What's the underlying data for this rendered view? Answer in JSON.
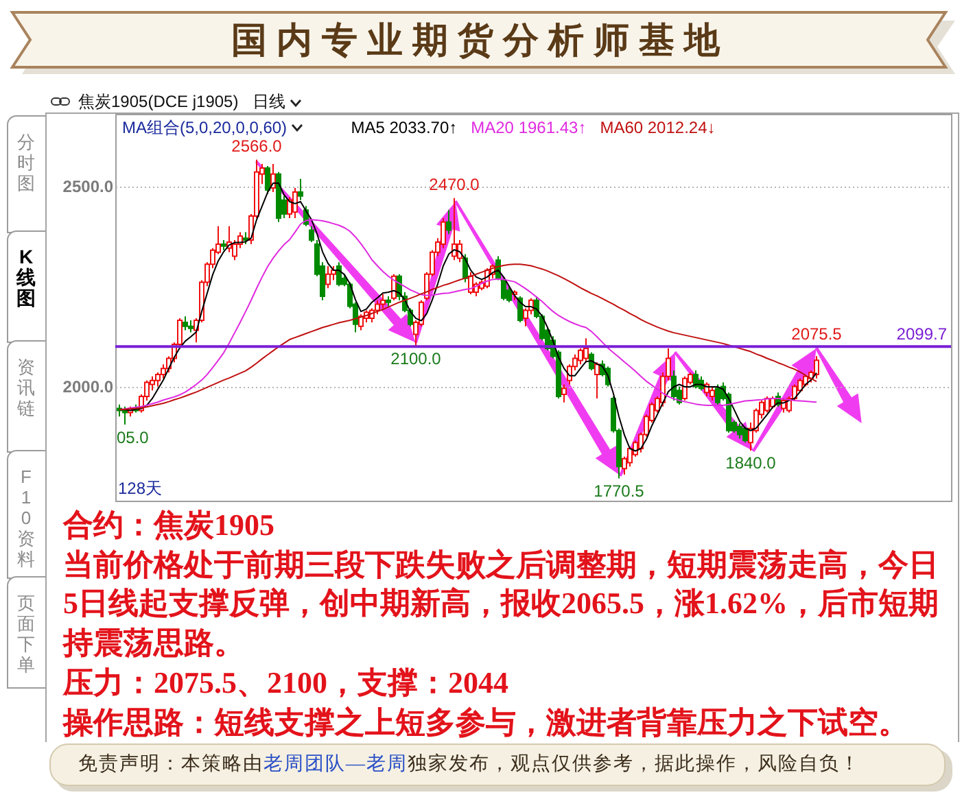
{
  "chart_data": {
    "type": "candlestick",
    "title": "国内专业期货分析师基地",
    "categories": [
      null,
      null,
      null,
      null,
      null,
      null,
      null,
      null,
      null,
      null,
      null,
      null,
      null,
      null,
      null,
      null,
      null,
      null,
      null,
      null,
      null,
      null,
      null,
      null,
      null,
      null,
      null,
      null,
      null,
      null,
      null,
      null,
      null,
      null,
      null,
      null,
      null,
      null,
      null,
      null,
      null,
      null,
      null,
      null,
      null,
      null,
      null,
      null,
      null,
      null,
      null,
      null,
      null,
      null,
      null,
      null,
      null,
      null,
      null,
      null,
      null,
      null,
      null,
      null,
      null,
      null,
      null,
      null,
      null,
      null,
      null,
      null,
      null,
      null,
      null,
      null,
      null,
      null,
      null,
      null,
      null,
      null,
      null,
      null,
      null,
      null,
      null,
      null,
      null,
      null,
      null,
      null,
      null,
      null,
      null,
      null,
      null,
      null,
      null,
      null,
      null,
      null,
      null,
      null,
      null,
      null,
      null,
      null,
      null,
      null,
      null,
      null,
      null,
      null,
      null,
      null,
      null,
      null,
      null,
      null,
      null,
      null,
      null,
      null,
      null,
      null,
      null,
      null
    ],
    "ohlc": [
      [
        1945,
        1955,
        1925,
        1940
      ],
      [
        1940,
        1950,
        1905,
        1935
      ],
      [
        1935,
        1950,
        1925,
        1945
      ],
      [
        1945,
        1955,
        1935,
        1940
      ],
      [
        1940,
        1980,
        1935,
        1975
      ],
      [
        1975,
        2015,
        1965,
        2010
      ],
      [
        2005,
        2025,
        1990,
        2015
      ],
      [
        2015,
        2035,
        2000,
        2030
      ],
      [
        2030,
        2055,
        2020,
        2045
      ],
      [
        2045,
        2075,
        2035,
        2070
      ],
      [
        2070,
        2110,
        2060,
        2105
      ],
      [
        2105,
        2170,
        2095,
        2165
      ],
      [
        2160,
        2175,
        2140,
        2150
      ],
      [
        2150,
        2165,
        2135,
        2145
      ],
      [
        2140,
        2170,
        2110,
        2165
      ],
      [
        2165,
        2265,
        2160,
        2260
      ],
      [
        2260,
        2310,
        2250,
        2305
      ],
      [
        2305,
        2345,
        2295,
        2340
      ],
      [
        2335,
        2400,
        2330,
        2355
      ],
      [
        2355,
        2365,
        2340,
        2350
      ],
      [
        2345,
        2400,
        2335,
        2360
      ],
      [
        2325,
        2365,
        2315,
        2355
      ],
      [
        2355,
        2385,
        2345,
        2375
      ],
      [
        2370,
        2385,
        2355,
        2365
      ],
      [
        2365,
        2430,
        2355,
        2425
      ],
      [
        2425,
        2566,
        2420,
        2535
      ],
      [
        2530,
        2555,
        2505,
        2545
      ],
      [
        2545,
        2550,
        2480,
        2490
      ],
      [
        2495,
        2555,
        2485,
        2530
      ],
      [
        2530,
        2535,
        2410,
        2420
      ],
      [
        2465,
        2475,
        2420,
        2430
      ],
      [
        2430,
        2472,
        2420,
        2465
      ],
      [
        2435,
        2495,
        2420,
        2485
      ],
      [
        2485,
        2518,
        2465,
        2475
      ],
      [
        2440,
        2450,
        2400,
        2405
      ],
      [
        2390,
        2400,
        2360,
        2365
      ],
      [
        2355,
        2365,
        2275,
        2280
      ],
      [
        2300,
        2310,
        2215,
        2225
      ],
      [
        2255,
        2300,
        2245,
        2280
      ],
      [
        2280,
        2300,
        2265,
        2290
      ],
      [
        2300,
        2310,
        2250,
        2255
      ],
      [
        2270,
        2280,
        2250,
        2255
      ],
      [
        2255,
        2260,
        2195,
        2200
      ],
      [
        2205,
        2210,
        2135,
        2155
      ],
      [
        2150,
        2180,
        2140,
        2175
      ],
      [
        2170,
        2190,
        2160,
        2185
      ],
      [
        2170,
        2195,
        2160,
        2190
      ],
      [
        2190,
        2215,
        2180,
        2205
      ],
      [
        2205,
        2230,
        2195,
        2215
      ],
      [
        2215,
        2225,
        2200,
        2210
      ],
      [
        2220,
        2280,
        2215,
        2275
      ],
      [
        2275,
        2280,
        2215,
        2225
      ],
      [
        2225,
        2235,
        2185,
        2190
      ],
      [
        2190,
        2195,
        2150,
        2155
      ],
      [
        2130,
        2165,
        2100,
        2160
      ],
      [
        2155,
        2215,
        2150,
        2210
      ],
      [
        2220,
        2285,
        2215,
        2280
      ],
      [
        2280,
        2340,
        2275,
        2335
      ],
      [
        2335,
        2370,
        2325,
        2360
      ],
      [
        2355,
        2420,
        2345,
        2410
      ],
      [
        2410,
        2440,
        2380,
        2390
      ],
      [
        2325,
        2470,
        2315,
        2355
      ],
      [
        2320,
        2365,
        2310,
        2355
      ],
      [
        2320,
        2330,
        2260,
        2270
      ],
      [
        2235,
        2285,
        2230,
        2275
      ],
      [
        2235,
        2260,
        2225,
        2255
      ],
      [
        2245,
        2265,
        2240,
        2260
      ],
      [
        2250,
        2295,
        2245,
        2290
      ],
      [
        2280,
        2305,
        2270,
        2300
      ],
      [
        2315,
        2325,
        2265,
        2270
      ],
      [
        2265,
        2270,
        2215,
        2220
      ],
      [
        2240,
        2250,
        2210,
        2215
      ],
      [
        2230,
        2240,
        2215,
        2235
      ],
      [
        2220,
        2225,
        2160,
        2165
      ],
      [
        2170,
        2195,
        2150,
        2190
      ],
      [
        2190,
        2220,
        2180,
        2215
      ],
      [
        2215,
        2225,
        2170,
        2175
      ],
      [
        2175,
        2180,
        2115,
        2120
      ],
      [
        2140,
        2145,
        2090,
        2095
      ],
      [
        2115,
        2125,
        2070,
        2075
      ],
      [
        2085,
        2090,
        1970,
        1975
      ],
      [
        1980,
        2005,
        1960,
        1995
      ],
      [
        2015,
        2055,
        2005,
        2050
      ],
      [
        2050,
        2080,
        2040,
        2070
      ],
      [
        2065,
        2095,
        2055,
        2090
      ],
      [
        2070,
        2120,
        2060,
        2095
      ],
      [
        2080,
        2085,
        2040,
        2045
      ],
      [
        2030,
        2060,
        1970,
        2055
      ],
      [
        2055,
        2065,
        2025,
        2030
      ],
      [
        2045,
        2050,
        2000,
        2005
      ],
      [
        1970,
        1975,
        1885,
        1890
      ],
      [
        1890,
        1895,
        1770.5,
        1800
      ],
      [
        1795,
        1825,
        1780,
        1820
      ],
      [
        1810,
        1850,
        1800,
        1845
      ],
      [
        1830,
        1865,
        1825,
        1860
      ],
      [
        1845,
        1885,
        1835,
        1880
      ],
      [
        1880,
        1930,
        1875,
        1925
      ],
      [
        1915,
        1960,
        1910,
        1955
      ],
      [
        1940,
        1975,
        1935,
        1970
      ],
      [
        1960,
        2035,
        1950,
        2025
      ],
      [
        2025,
        2095,
        2015,
        2070
      ],
      [
        2025,
        2040,
        1965,
        1975
      ],
      [
        1990,
        2000,
        1955,
        1960
      ],
      [
        1970,
        2025,
        1965,
        2020
      ],
      [
        2010,
        2035,
        2005,
        2030
      ],
      [
        2030,
        2040,
        1995,
        2000
      ],
      [
        2015,
        2025,
        1990,
        1995
      ],
      [
        1985,
        2010,
        1975,
        2005
      ],
      [
        1975,
        2000,
        1965,
        1990
      ],
      [
        1995,
        2005,
        1955,
        1960
      ],
      [
        2000,
        2010,
        1965,
        1970
      ],
      [
        1980,
        1985,
        1885,
        1890
      ],
      [
        1910,
        1915,
        1885,
        1890
      ],
      [
        1900,
        1908,
        1870,
        1880
      ],
      [
        1895,
        1900,
        1860,
        1865
      ],
      [
        1860,
        1910,
        1840,
        1895
      ],
      [
        1890,
        1945,
        1885,
        1940
      ],
      [
        1930,
        1965,
        1920,
        1960
      ],
      [
        1940,
        1975,
        1935,
        1970
      ],
      [
        1950,
        1975,
        1945,
        1970
      ],
      [
        1975,
        1985,
        1950,
        1955
      ],
      [
        1945,
        1970,
        1935,
        1965
      ],
      [
        1940,
        1975,
        1935,
        1970
      ],
      [
        1970,
        2005,
        1965,
        2000
      ],
      [
        1990,
        2020,
        1985,
        2015
      ],
      [
        2005,
        2030,
        2000,
        2025
      ],
      [
        2020,
        2040,
        2010,
        2035
      ],
      [
        2030,
        2075.5,
        2020,
        2065.5
      ]
    ],
    "series": [
      {
        "name": "MA5 2033.70↑",
        "type": "line",
        "color": "#000000",
        "values": [
          1942,
          1942,
          1940,
          1943,
          1945,
          1953,
          1970,
          1993,
          2016,
          2045,
          2073,
          2096,
          2113,
          2124,
          2136,
          2187,
          2233,
          2279,
          2313,
          2336,
          2353,
          2359,
          2359,
          2361,
          2370,
          2416,
          2450,
          2484,
          2507,
          2507,
          2478,
          2461,
          2456,
          2461,
          2438,
          2416,
          2381,
          2336,
          2307,
          2290,
          2290,
          2279,
          2256,
          2216,
          2187,
          2193,
          2210,
          2221,
          2233,
          2235,
          2239,
          2233,
          2216,
          2187,
          2170,
          2164,
          2182,
          2216,
          2256,
          2301,
          2330,
          2341,
          2336,
          2318,
          2290,
          2273,
          2267,
          2273,
          2284,
          2290,
          2273,
          2250,
          2227,
          2210,
          2199,
          2199,
          2193,
          2176,
          2147,
          2113,
          2073,
          2045,
          2027,
          2027,
          2045,
          2062,
          2064,
          2056,
          2050,
          2027,
          1982,
          1925,
          1879,
          1845,
          1839,
          1845,
          1868,
          1902,
          1930,
          1959,
          1987,
          1999,
          2005,
          1999,
          1999,
          2005,
          2005,
          1999,
          1999,
          1999,
          1993,
          1970,
          1942,
          1913,
          1896,
          1890,
          1896,
          1913,
          1930,
          1948,
          1959,
          1959,
          1965,
          1970,
          1987,
          2005,
          2016,
          2034
        ]
      },
      {
        "name": "MA20 1961.43↑",
        "type": "line",
        "color": "#e02ae0",
        "values": [
          1942,
          1944,
          1946,
          1948,
          1950,
          1953,
          1957,
          1961,
          1966,
          1970,
          1974,
          1979,
          1986,
          1995,
          2005,
          2016,
          2030,
          2047,
          2065,
          2084,
          2108,
          2134,
          2160,
          2187,
          2215,
          2245,
          2273,
          2299,
          2320,
          2338,
          2354,
          2366,
          2385,
          2405,
          2414,
          2416,
          2415,
          2413,
          2410,
          2406,
          2402,
          2396,
          2387,
          2373,
          2356,
          2337,
          2316,
          2301,
          2287,
          2275,
          2265,
          2257,
          2249,
          2241,
          2235,
          2229,
          2227,
          2228,
          2230,
          2232,
          2233,
          2236,
          2239,
          2242,
          2244,
          2250,
          2257,
          2263,
          2267,
          2268,
          2267,
          2264,
          2261,
          2253,
          2244,
          2234,
          2223,
          2212,
          2199,
          2187,
          2177,
          2169,
          2162,
          2156,
          2151,
          2147,
          2137,
          2124,
          2110,
          2096,
          2084,
          2073,
          2061,
          2050,
          2038,
          2025,
          2013,
          2003,
          1993,
          1983,
          1975,
          1969,
          1965,
          1962,
          1959,
          1956,
          1954,
          1953,
          1953,
          1953,
          1953,
          1955,
          1958,
          1961,
          1964,
          1965,
          1966,
          1967,
          1969,
          1970,
          1970,
          1969,
          1967,
          1965,
          1964,
          1963,
          1962,
          1961
        ]
      },
      {
        "name": "MA60 2012.24↓",
        "type": "line",
        "color": "#c01010",
        "values": [
          1942,
          1943,
          1944,
          1945,
          1947,
          1949,
          1952,
          1955,
          1958,
          1962,
          1967,
          1971,
          1976,
          1981,
          1986,
          1992,
          1998,
          2004,
          2010,
          2016,
          2021,
          2027,
          2033,
          2039,
          2048,
          2058,
          2069,
          2079,
          2089,
          2099,
          2108,
          2117,
          2122,
          2127,
          2132,
          2137,
          2142,
          2147,
          2151,
          2155,
          2159,
          2162,
          2165,
          2169,
          2173,
          2177,
          2182,
          2187,
          2192,
          2198,
          2204,
          2210,
          2215,
          2220,
          2225,
          2231,
          2236,
          2242,
          2247,
          2252,
          2256,
          2261,
          2266,
          2270,
          2275,
          2280,
          2285,
          2290,
          2295,
          2299,
          2302,
          2304,
          2305,
          2305,
          2303,
          2301,
          2297,
          2293,
          2288,
          2282,
          2276,
          2269,
          2262,
          2254,
          2246,
          2239,
          2232,
          2226,
          2219,
          2212,
          2205,
          2197,
          2190,
          2182,
          2175,
          2167,
          2160,
          2154,
          2148,
          2143,
          2138,
          2134,
          2131,
          2128,
          2125,
          2122,
          2119,
          2116,
          2113,
          2110,
          2107,
          2103,
          2099,
          2095,
          2091,
          2087,
          2081,
          2076,
          2070,
          2065,
          2059,
          2054,
          2048,
          2043,
          2036,
          2028,
          2020,
          2012
        ]
      }
    ],
    "ylim": [
      1715,
      2680
    ],
    "yticks": [
      {
        "value": 2000,
        "label": "2000.0"
      },
      {
        "value": 2500,
        "label": "2500.0"
      }
    ],
    "grid": "y",
    "tick_labels": "y",
    "legend": "top",
    "ref_lines": [
      {
        "axis": "y",
        "value": 2099.7,
        "label": "2099.7",
        "color": "#7b1fd6"
      }
    ],
    "annotations": [
      "焦炭1905(DCE j1905)",
      "日线",
      "MA组合(5,0,20,0,0,60)",
      "128天",
      "05.0",
      "分时图",
      "K线图",
      "资讯链",
      "F10资料",
      "页面下单",
      "合约：焦炭1905",
      "当前价格处于前期三段下跌失败之后调整期，短期震荡走高，今日5日线起支撑反弹，创中期新高，报收2065.5，涨1.62%，后市短期持震荡思路。",
      "压力：2075.5、2100，支撑：2044",
      "操作思路：短线支撑之上短多参与，激进者背靠压力之下试空。",
      "免责声明：本策略由",
      "老周团队—老周",
      "独家发布，观点仅供参考，据此操作，风险自负！",
      {
        "text": "2566.0",
        "y": 2566
      },
      {
        "text": "2100.0",
        "y": 2100
      },
      {
        "text": "2470.0",
        "y": 2470
      },
      {
        "text": "1770.5",
        "y": 1770.5
      },
      {
        "text": "1840.0",
        "y": 1840
      },
      {
        "text": "2075.5",
        "y": 2075.5
      }
    ]
  }
}
